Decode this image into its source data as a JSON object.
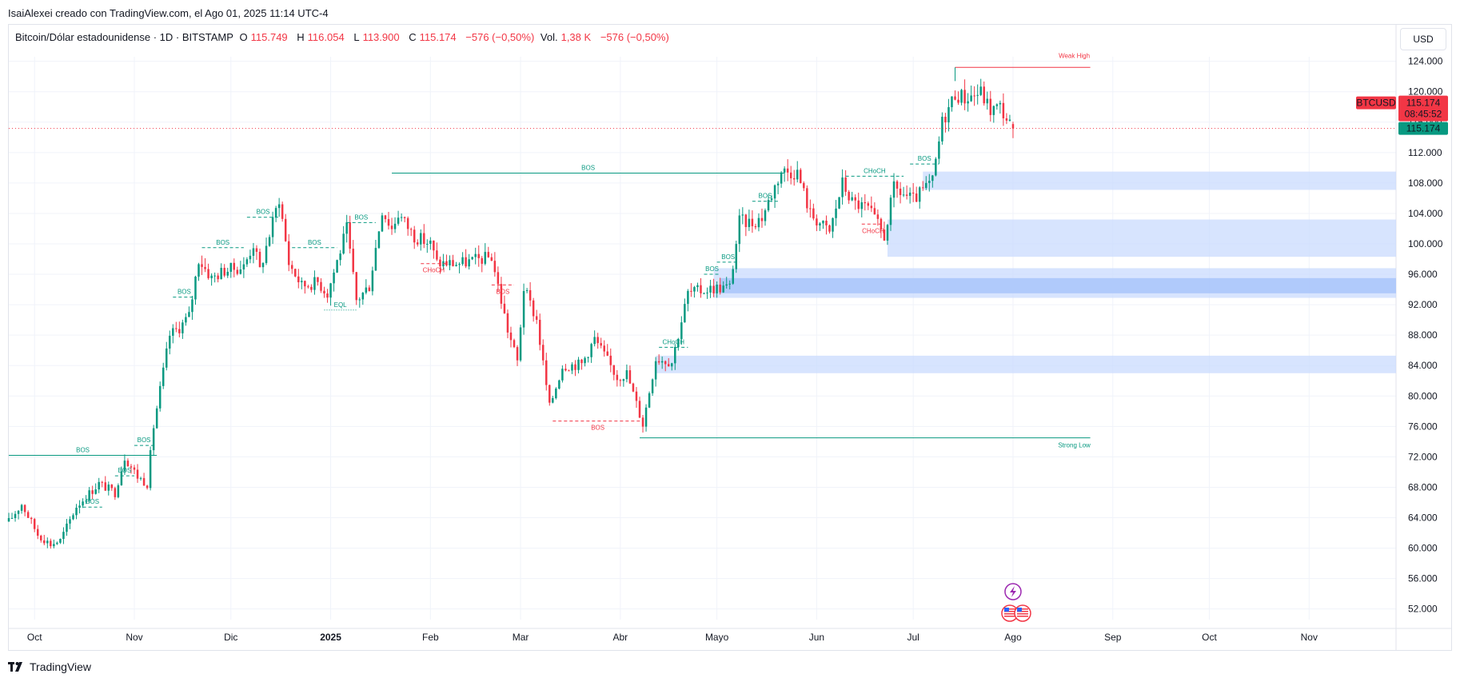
{
  "header": {
    "byline": "IsaiAlexei creado con TradingView.com, el Ago 01, 2025 11:14 UTC-4"
  },
  "legend": {
    "symbol": "Bitcoin/Dólar estadounidense · 1D · BITSTAMP",
    "o_label": "O",
    "o_value": "115.749",
    "h_label": "H",
    "h_value": "116.054",
    "l_label": "L",
    "l_value": "113.900",
    "c_label": "C",
    "c_value": "115.174",
    "change": "−576 (−0,50%)",
    "vol_label": "Vol.",
    "vol_value": "1,38 K",
    "vol_change": "−576 (−0,50%)"
  },
  "currency_button": "USD",
  "price_tags": {
    "symbol_tag": "BTCUSD",
    "last_price": "115.174",
    "countdown": "08:45:52",
    "price_line_label": "115.174"
  },
  "brand": "TradingView",
  "colors": {
    "up": "#089981",
    "down": "#f23645",
    "zone": "#c9dbfd",
    "zone_strong": "#a6c3fa",
    "grid": "#f0f3fa",
    "price_line": "#f23645",
    "structure_green": "#089981",
    "structure_red": "#f23645",
    "event_icon": "#9c27b0"
  },
  "chart_data": {
    "type": "candlestick",
    "symbol": "BTCUSD",
    "interval": "1D",
    "x_axis": {
      "labels": [
        "Oct",
        "Nov",
        "Dic",
        "2025",
        "Feb",
        "Mar",
        "Abr",
        "Mayo",
        "Jun",
        "Jul",
        "Ago",
        "Sep",
        "Oct",
        "Nov"
      ],
      "label_dates": [
        "2024-10-01",
        "2024-11-01",
        "2024-12-01",
        "2025-01-01",
        "2025-02-01",
        "2025-03-01",
        "2025-04-01",
        "2025-05-01",
        "2025-06-01",
        "2025-07-01",
        "2025-08-01",
        "2025-09-01",
        "2025-10-01",
        "2025-11-01"
      ],
      "range": [
        "2024-09-23",
        "2025-11-28"
      ]
    },
    "y_axis": {
      "ticks": [
        "52.000",
        "56.000",
        "60.000",
        "64.000",
        "68.000",
        "72.000",
        "76.000",
        "80.000",
        "84.000",
        "88.000",
        "92.000",
        "96.000",
        "100.000",
        "104.000",
        "108.000",
        "112.000",
        "116.000",
        "120.000",
        "124.000"
      ],
      "tick_values": [
        52000,
        56000,
        60000,
        64000,
        68000,
        72000,
        76000,
        80000,
        84000,
        88000,
        92000,
        96000,
        100000,
        104000,
        108000,
        112000,
        116000,
        120000,
        124000
      ],
      "range": [
        50600,
        128800
      ],
      "side": "right"
    },
    "anchors": [
      [
        "2024-09-23",
        63500
      ],
      [
        "2024-09-27",
        65800
      ],
      [
        "2024-10-02",
        61800
      ],
      [
        "2024-10-06",
        60500
      ],
      [
        "2024-10-09",
        61000
      ],
      [
        "2024-10-14",
        65500
      ],
      [
        "2024-10-21",
        68500
      ],
      [
        "2024-10-26",
        67300
      ],
      [
        "2024-10-29",
        72000
      ],
      [
        "2024-11-02",
        69400
      ],
      [
        "2024-11-05",
        68500
      ],
      [
        "2024-11-07",
        76000
      ],
      [
        "2024-11-12",
        88000
      ],
      [
        "2024-11-15",
        89000
      ],
      [
        "2024-11-18",
        90500
      ],
      [
        "2024-11-21",
        98000
      ],
      [
        "2024-11-25",
        95500
      ],
      [
        "2024-11-29",
        96500
      ],
      [
        "2024-12-05",
        97000
      ],
      [
        "2024-12-08",
        100000
      ],
      [
        "2024-12-10",
        96500
      ],
      [
        "2024-12-16",
        106000
      ],
      [
        "2024-12-19",
        97500
      ],
      [
        "2024-12-23",
        94500
      ],
      [
        "2024-12-28",
        95000
      ],
      [
        "2024-12-31",
        93500
      ],
      [
        "2025-01-06",
        102000
      ],
      [
        "2025-01-09",
        92500
      ],
      [
        "2025-01-13",
        94500
      ],
      [
        "2025-01-17",
        104500
      ],
      [
        "2025-01-20",
        102000
      ],
      [
        "2025-01-22",
        104000
      ],
      [
        "2025-01-27",
        101000
      ],
      [
        "2025-02-01",
        100000
      ],
      [
        "2025-02-03",
        97500
      ],
      [
        "2025-02-10",
        97400
      ],
      [
        "2025-02-20",
        98300
      ],
      [
        "2025-02-25",
        88700
      ],
      [
        "2025-02-28",
        84500
      ],
      [
        "2025-03-02",
        94200
      ],
      [
        "2025-03-06",
        90000
      ],
      [
        "2025-03-10",
        78500
      ],
      [
        "2025-03-14",
        84000
      ],
      [
        "2025-03-20",
        84200
      ],
      [
        "2025-03-24",
        87500
      ],
      [
        "2025-03-31",
        82500
      ],
      [
        "2025-04-03",
        83000
      ],
      [
        "2025-04-08",
        76300
      ],
      [
        "2025-04-12",
        85000
      ],
      [
        "2025-04-17",
        84500
      ],
      [
        "2025-04-22",
        93500
      ],
      [
        "2025-04-30",
        94200
      ],
      [
        "2025-05-05",
        94300
      ],
      [
        "2025-05-08",
        103000
      ],
      [
        "2025-05-12",
        102800
      ],
      [
        "2025-05-15",
        103500
      ],
      [
        "2025-05-21",
        109600
      ],
      [
        "2025-05-26",
        109400
      ],
      [
        "2025-05-30",
        104000
      ],
      [
        "2025-06-05",
        101500
      ],
      [
        "2025-06-09",
        108000
      ],
      [
        "2025-06-12",
        105500
      ],
      [
        "2025-06-17",
        104600
      ],
      [
        "2025-06-22",
        101000
      ],
      [
        "2025-06-25",
        107300
      ],
      [
        "2025-07-01",
        105700
      ],
      [
        "2025-07-07",
        108200
      ],
      [
        "2025-07-10",
        116000
      ],
      [
        "2025-07-14",
        119800
      ],
      [
        "2025-07-17",
        119200
      ],
      [
        "2025-07-22",
        119900
      ],
      [
        "2025-07-25",
        117600
      ],
      [
        "2025-07-28",
        118000
      ],
      [
        "2025-07-31",
        115749
      ],
      [
        "2025-08-01",
        115174
      ]
    ],
    "last_candle": {
      "date": "2025-08-01",
      "open": 115749,
      "high": 116054,
      "low": 113900,
      "close": 115174
    },
    "structure": [
      {
        "label": "BOS",
        "type": "bullish",
        "level": 72200,
        "from": "2024-09-23",
        "to": "2024-11-08",
        "label_size": "large"
      },
      {
        "label": "BOS",
        "type": "bullish",
        "level": 65400,
        "from": "2024-10-16",
        "to": "2024-10-22"
      },
      {
        "label": "BOS",
        "type": "bullish",
        "level": 69500,
        "from": "2024-10-26",
        "to": "2024-11-01"
      },
      {
        "label": "BOS",
        "type": "bullish",
        "level": 73500,
        "from": "2024-11-01",
        "to": "2024-11-07"
      },
      {
        "label": "BOS",
        "type": "bullish",
        "level": 93000,
        "from": "2024-11-13",
        "to": "2024-11-20"
      },
      {
        "label": "BOS",
        "type": "bullish",
        "level": 99500,
        "from": "2024-11-22",
        "to": "2024-12-05"
      },
      {
        "label": "BOS",
        "type": "bullish",
        "level": 103500,
        "from": "2024-12-06",
        "to": "2024-12-16"
      },
      {
        "label": "BOS",
        "type": "bullish",
        "level": 99500,
        "from": "2024-12-20",
        "to": "2025-01-03"
      },
      {
        "label": "BOS",
        "type": "bullish",
        "level": 102800,
        "from": "2025-01-06",
        "to": "2025-01-15"
      },
      {
        "label": "EQL",
        "type": "bullish",
        "level": 91300,
        "from": "2024-12-30",
        "to": "2025-01-09"
      },
      {
        "label": "BOS",
        "type": "bullish",
        "level": 109300,
        "from": "2025-01-20",
        "to": "2025-05-22",
        "label_size": "large"
      },
      {
        "label": "CHoCH",
        "type": "bearish",
        "level": 97400,
        "from": "2025-01-29",
        "to": "2025-02-06"
      },
      {
        "label": "BOS",
        "type": "bearish",
        "level": 94600,
        "from": "2025-02-20",
        "to": "2025-02-27"
      },
      {
        "label": "BOS",
        "type": "bearish",
        "level": 76700,
        "from": "2025-03-11",
        "to": "2025-04-08"
      },
      {
        "label": "CHoCH",
        "type": "bullish",
        "level": 86400,
        "from": "2025-04-13",
        "to": "2025-04-22"
      },
      {
        "label": "BOS",
        "type": "bullish",
        "level": 96000,
        "from": "2025-04-27",
        "to": "2025-05-02"
      },
      {
        "label": "BOS",
        "type": "bullish",
        "level": 97600,
        "from": "2025-05-01",
        "to": "2025-05-08"
      },
      {
        "label": "BOS",
        "type": "bullish",
        "level": 105600,
        "from": "2025-05-12",
        "to": "2025-05-20"
      },
      {
        "label": "CHoCH",
        "type": "bearish",
        "level": 102600,
        "from": "2025-06-15",
        "to": "2025-06-22"
      },
      {
        "label": "CHoCH",
        "type": "bullish",
        "level": 108900,
        "from": "2025-06-10",
        "to": "2025-06-28"
      },
      {
        "label": "BOS",
        "type": "bullish",
        "level": 110500,
        "from": "2025-06-30",
        "to": "2025-07-09"
      }
    ],
    "strong_weak": [
      {
        "label": "Weak High",
        "level": 123200,
        "from": "2025-07-14",
        "to": "2025-08-25",
        "type": "bearish"
      },
      {
        "label": "Strong Low",
        "level": 74500,
        "from": "2025-04-07",
        "to": "2025-08-25",
        "type": "bullish"
      }
    ],
    "zones": [
      {
        "from": "2025-07-04",
        "top": 109500,
        "bottom": 107100
      },
      {
        "from": "2025-06-23",
        "top": 103200,
        "bottom": 98300
      },
      {
        "from": "2025-04-30",
        "top": 96800,
        "bottom": 92900
      },
      {
        "from": "2025-05-02",
        "top": 95500,
        "bottom": 93500,
        "strong": true
      },
      {
        "from": "2025-04-12",
        "top": 85300,
        "bottom": 83000
      }
    ],
    "current_price": 115174
  }
}
